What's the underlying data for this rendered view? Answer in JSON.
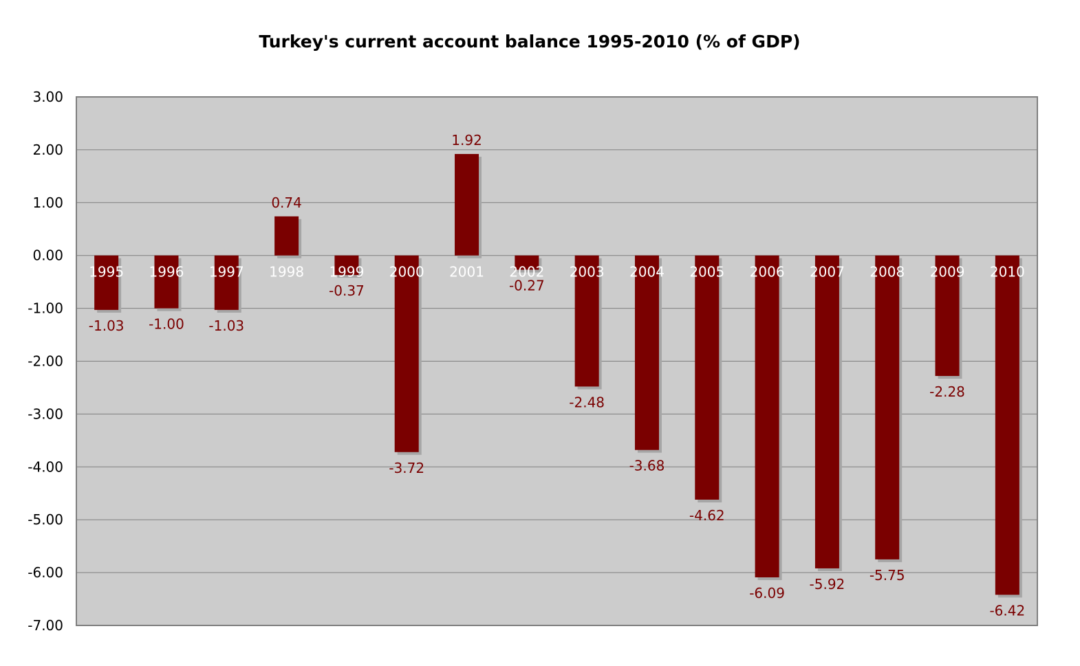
{
  "colors": {
    "bar": "#7a0000",
    "bar_shadow": "#a6a6a6",
    "plot_background": "#cccccc",
    "gridline": "#7f7f7f",
    "axis": "#7f7f7f",
    "data_label": "#7a0000",
    "category_label": "#ffffff"
  },
  "chart_data": {
    "type": "bar",
    "title": "Turkey's current account balance 1995-2010 (% of GDP)",
    "xlabel": "",
    "ylabel": "",
    "categories": [
      "1995",
      "1996",
      "1997",
      "1998",
      "1999",
      "2000",
      "2001",
      "2002",
      "2003",
      "2004",
      "2005",
      "2006",
      "2007",
      "2008",
      "2009",
      "2010"
    ],
    "values": [
      -1.03,
      -1.0,
      -1.03,
      0.74,
      -0.37,
      -3.72,
      1.92,
      -0.27,
      -2.48,
      -3.68,
      -4.62,
      -6.09,
      -5.92,
      -5.75,
      -2.28,
      -6.42
    ],
    "data_labels": [
      "-1.03",
      "-1.00",
      "-1.03",
      "0.74",
      "-0.37",
      "-3.72",
      "1.92",
      "-0.27",
      "-2.48",
      "-3.68",
      "-4.62",
      "-6.09",
      "-5.92",
      "-5.75",
      "-2.28",
      "-6.42"
    ],
    "ylim": [
      -7,
      3
    ],
    "yticks": [
      "3.00",
      "2.00",
      "1.00",
      "0.00",
      "-1.00",
      "-2.00",
      "-3.00",
      "-4.00",
      "-5.00",
      "-6.00",
      "-7.00"
    ],
    "grid": true,
    "legend": "none"
  }
}
